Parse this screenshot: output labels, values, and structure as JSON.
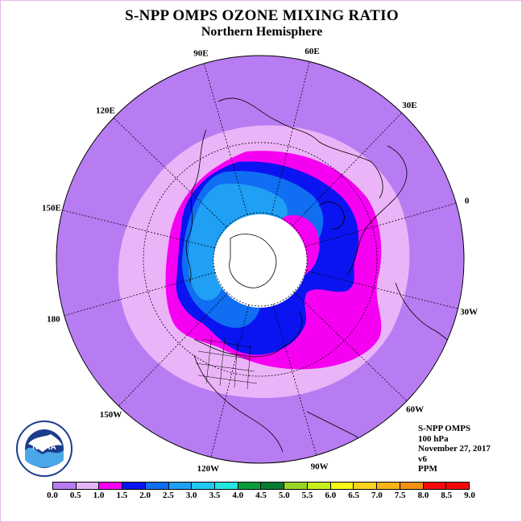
{
  "title": "S-NPP OMPS OZONE MIXING RATIO",
  "subtitle": "Northern Hemisphere",
  "map": {
    "projection": "north polar stereographic",
    "longitude_labels": [
      {
        "label": "90E",
        "lon": 90
      },
      {
        "label": "60E",
        "lon": 60
      },
      {
        "label": "30E",
        "lon": 30
      },
      {
        "label": "0",
        "lon": 0
      },
      {
        "label": "30W",
        "lon": -30
      },
      {
        "label": "60W",
        "lon": -60
      },
      {
        "label": "90W",
        "lon": -90
      },
      {
        "label": "120W",
        "lon": -120
      },
      {
        "label": "150W",
        "lon": -150
      },
      {
        "label": "180",
        "lon": 180
      },
      {
        "label": "150E",
        "lon": 150
      },
      {
        "label": "120E",
        "lon": 120
      }
    ],
    "latitude_circles": [
      60,
      30
    ],
    "no_data_region": "polar night",
    "colors": {
      "background": "#b87cf2",
      "ring_0.5_1.0": "#ecb4f8",
      "ring_1.0_1.5": "#f600f2",
      "ring_1.5_2.0": "#0a14f0",
      "ring_2.0_2.5": "#0f6ef2",
      "ring_2.5_3.0": "#1fa0f5",
      "no_data": "#ffffff"
    }
  },
  "info": {
    "instrument": "S-NPP OMPS",
    "level": "100 hPa",
    "date": "November 27, 2017",
    "version": "v6",
    "units": "PPM"
  },
  "colorbar": {
    "ticks": [
      "0.0",
      "0.5",
      "1.0",
      "1.5",
      "2.0",
      "2.5",
      "3.0",
      "3.5",
      "4.0",
      "4.5",
      "5.0",
      "5.5",
      "6.0",
      "6.5",
      "7.0",
      "7.5",
      "8.0",
      "8.5",
      "9.0"
    ],
    "colors": [
      "#b87cf2",
      "#e6b4f6",
      "#f600f2",
      "#0a14f0",
      "#0f6ef2",
      "#1fa0f5",
      "#22c8f2",
      "#22e8e0",
      "#0a9c3c",
      "#0a7a32",
      "#9ad428",
      "#c8f01e",
      "#f8f81a",
      "#f8d21e",
      "#f6b418",
      "#f49014",
      "#f40a0a",
      "#f00a0a",
      "#7a5032"
    ]
  },
  "logo": {
    "name": "NOAA",
    "text": "NOAA"
  }
}
